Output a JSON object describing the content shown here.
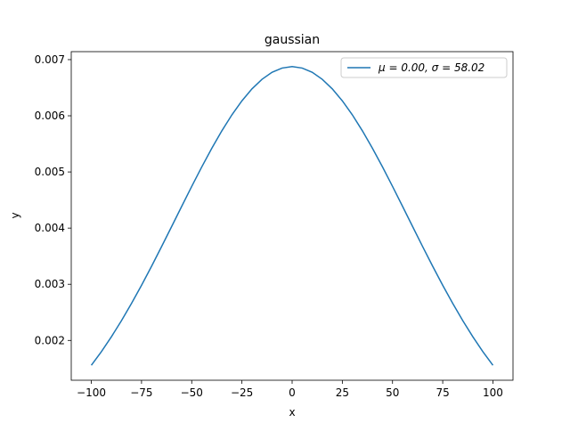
{
  "chart_data": {
    "type": "line",
    "title": "gaussian",
    "x_label": "x",
    "y_label": "y",
    "x": [
      -100,
      -95,
      -90,
      -85,
      -80,
      -75,
      -70,
      -65,
      -60,
      -55,
      -50,
      -45,
      -40,
      -35,
      -30,
      -25,
      -20,
      -15,
      -10,
      -5,
      0,
      5,
      10,
      15,
      20,
      25,
      30,
      35,
      40,
      45,
      50,
      55,
      60,
      65,
      70,
      75,
      80,
      85,
      90,
      95,
      100
    ],
    "series": [
      {
        "name": "μ = 0.00,  σ = 58.02",
        "color": "#1f77b4",
        "values": [
          0.001557,
          0.0018,
          0.002065,
          0.002351,
          0.002658,
          0.002982,
          0.003321,
          0.003671,
          0.004028,
          0.004387,
          0.004743,
          0.00509,
          0.005422,
          0.005732,
          0.006016,
          0.006266,
          0.006479,
          0.00665,
          0.006775,
          0.00685,
          0.006876,
          0.00685,
          0.006775,
          0.00665,
          0.006479,
          0.006266,
          0.006016,
          0.005732,
          0.005422,
          0.00509,
          0.004743,
          0.004387,
          0.004028,
          0.003671,
          0.003321,
          0.002982,
          0.002658,
          0.002351,
          0.002065,
          0.0018,
          0.001557
        ]
      }
    ],
    "xlim": [
      -110,
      110
    ],
    "xticks": [
      {
        "value": -100,
        "label": "−100"
      },
      {
        "value": -75,
        "label": "−75"
      },
      {
        "value": -50,
        "label": "−50"
      },
      {
        "value": -25,
        "label": "−25"
      },
      0,
      25,
      50,
      75,
      100
    ],
    "ylim": [
      0.001291,
      0.007142
    ],
    "yticks": [
      0.002,
      0.003,
      0.004,
      0.005,
      0.006,
      0.007
    ],
    "grid": false,
    "legend": "upper-right"
  }
}
